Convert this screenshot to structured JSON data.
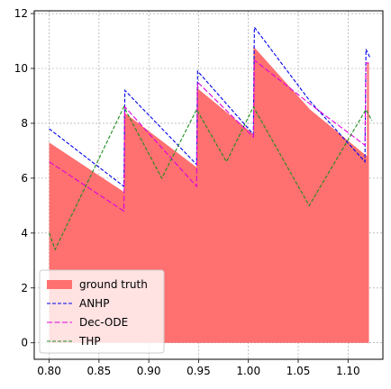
{
  "chart_data": {
    "type": "line",
    "xlim": [
      0.785,
      1.135
    ],
    "ylim": [
      -0.6,
      12.1
    ],
    "xticks": [
      0.8,
      0.85,
      0.9,
      0.95,
      1.0,
      1.05,
      1.1
    ],
    "xtick_labels": [
      "0.80",
      "0.85",
      "0.90",
      "0.95",
      "1.00",
      "1.05",
      "1.10"
    ],
    "yticks": [
      0,
      2,
      4,
      6,
      8,
      10,
      12
    ],
    "ytick_labels": [
      "0",
      "2",
      "4",
      "6",
      "8",
      "10",
      "12"
    ],
    "grid": true,
    "legend_position": "lower-left",
    "ground_truth": {
      "name": "ground truth",
      "color": "#ff7070",
      "x": [
        0.8,
        0.875,
        0.8751,
        0.948,
        0.9481,
        1.005,
        1.0051,
        1.062,
        1.119,
        1.1191,
        1.121
      ],
      "y": [
        7.3,
        5.5,
        8.4,
        6.4,
        9.3,
        7.6,
        10.8,
        8.5,
        6.8,
        10.2,
        10.2
      ]
    },
    "series": [
      {
        "name": "ANHP",
        "color": "#0000ee",
        "dash": "4,2",
        "x": [
          0.8,
          0.875,
          0.876,
          0.948,
          0.949,
          1.005,
          1.006,
          1.062,
          1.117,
          1.118,
          1.122
        ],
        "y": [
          7.8,
          5.7,
          9.2,
          6.5,
          9.9,
          7.6,
          11.5,
          8.8,
          6.6,
          10.7,
          10.4
        ]
      },
      {
        "name": "Dec-ODE",
        "color": "#dd00dd",
        "dash": "6,2.5",
        "x": [
          0.8,
          0.875,
          0.876,
          0.948,
          0.949,
          1.005,
          1.006,
          1.062,
          1.117,
          1.118,
          1.121
        ],
        "y": [
          6.6,
          4.8,
          8.6,
          5.7,
          9.5,
          7.5,
          10.3,
          8.7,
          7.2,
          10.2,
          10.2
        ]
      },
      {
        "name": "THP",
        "color": "#1e8c1e",
        "dash": "4,2",
        "x": [
          0.8,
          0.806,
          0.875,
          0.913,
          0.948,
          0.978,
          1.005,
          1.061,
          1.118,
          1.124
        ],
        "y": [
          4.0,
          3.4,
          8.6,
          6.0,
          8.5,
          6.6,
          8.6,
          5.0,
          8.5,
          8.1
        ]
      }
    ]
  }
}
